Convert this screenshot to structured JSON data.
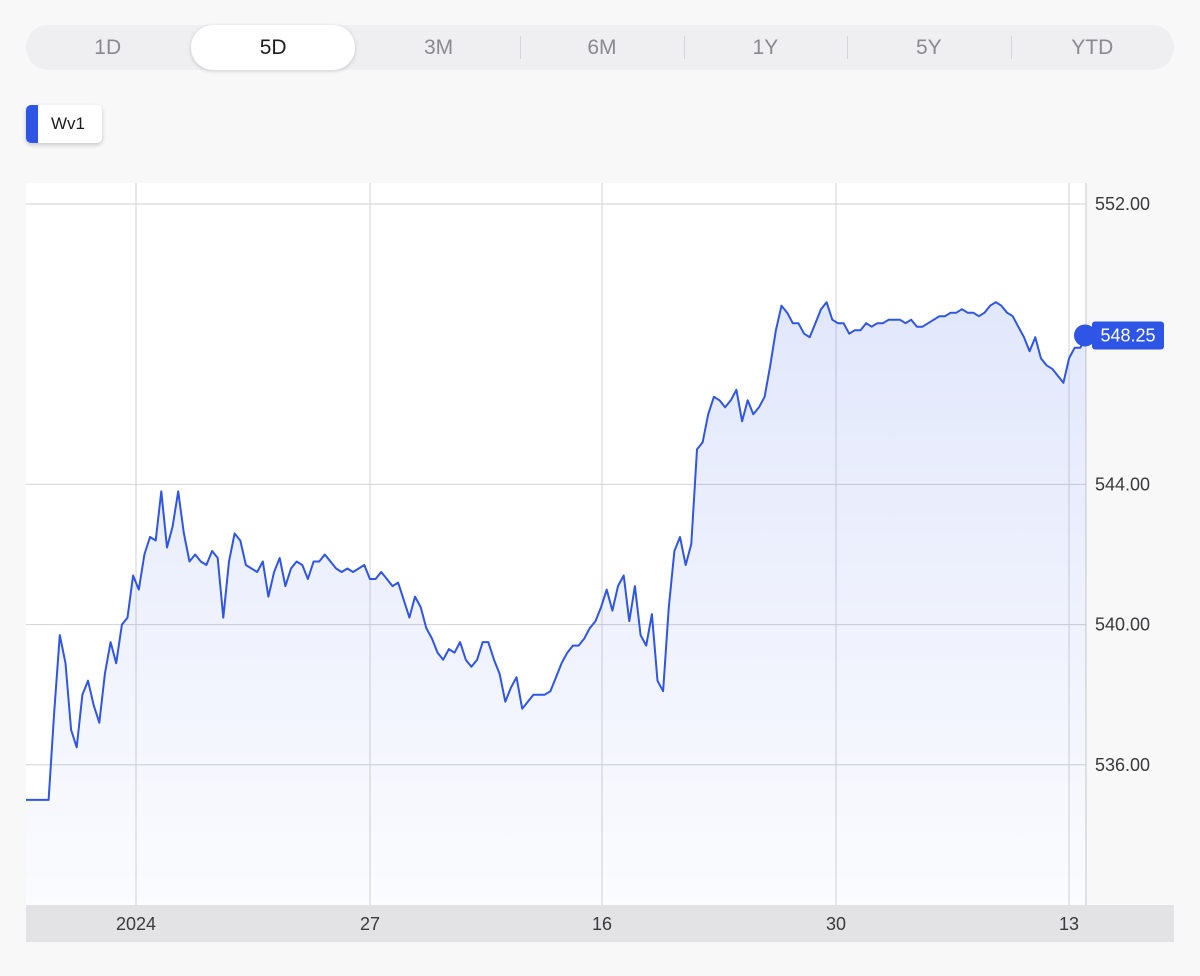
{
  "range_selector": {
    "tabs": [
      {
        "label": "1D"
      },
      {
        "label": "5D",
        "active": true
      },
      {
        "label": "3M"
      },
      {
        "label": "6M"
      },
      {
        "label": "1Y"
      },
      {
        "label": "5Y"
      },
      {
        "label": "YTD"
      }
    ]
  },
  "legend": {
    "label": "Wv1",
    "color": "#2e55e6"
  },
  "chart_data": {
    "type": "line",
    "title": "",
    "xlabel": "",
    "ylabel": "",
    "x_ticks": [
      "2024",
      "27",
      "16",
      "30",
      "13"
    ],
    "y_ticks": [
      "552.00",
      "544.00",
      "540.00",
      "536.00"
    ],
    "ylim": [
      532.0,
      552.6
    ],
    "grid": true,
    "legend_position": "top-left",
    "line_color": "#2e55e6",
    "current_value": "548.25",
    "series": [
      {
        "name": "Wv1",
        "values": [
          535.0,
          535.0,
          535.0,
          535.0,
          535.0,
          537.5,
          539.7,
          538.9,
          537.0,
          536.5,
          538.0,
          538.4,
          537.7,
          537.2,
          538.6,
          539.5,
          538.9,
          540.0,
          540.2,
          541.4,
          541.0,
          542.0,
          542.5,
          542.4,
          543.8,
          542.2,
          542.8,
          543.8,
          542.6,
          541.8,
          542.0,
          541.8,
          541.7,
          542.1,
          541.9,
          540.2,
          541.8,
          542.6,
          542.4,
          541.7,
          541.6,
          541.5,
          541.8,
          540.8,
          541.5,
          541.9,
          541.1,
          541.6,
          541.8,
          541.7,
          541.3,
          541.8,
          541.8,
          542.0,
          541.8,
          541.6,
          541.5,
          541.6,
          541.5,
          541.6,
          541.7,
          541.3,
          541.3,
          541.5,
          541.3,
          541.1,
          541.2,
          540.7,
          540.2,
          540.8,
          540.5,
          539.9,
          539.6,
          539.2,
          539.0,
          539.3,
          539.2,
          539.5,
          539.0,
          538.8,
          539.0,
          539.5,
          539.5,
          539.0,
          538.6,
          537.8,
          538.2,
          538.5,
          537.6,
          537.8,
          538.0,
          538.0,
          538.0,
          538.1,
          538.5,
          538.9,
          539.2,
          539.4,
          539.4,
          539.6,
          539.9,
          540.1,
          540.5,
          541.0,
          540.4,
          541.1,
          541.4,
          540.1,
          541.1,
          539.7,
          539.4,
          540.3,
          538.4,
          538.1,
          540.5,
          542.1,
          542.5,
          541.7,
          542.3,
          545.0,
          545.2,
          546.0,
          546.5,
          546.4,
          546.2,
          546.4,
          546.7,
          545.8,
          546.4,
          546.0,
          546.2,
          546.5,
          547.4,
          548.4,
          549.1,
          548.9,
          548.6,
          548.6,
          548.3,
          548.2,
          548.6,
          549.0,
          549.2,
          548.7,
          548.6,
          548.6,
          548.3,
          548.4,
          548.4,
          548.6,
          548.5,
          548.6,
          548.6,
          548.7,
          548.7,
          548.7,
          548.6,
          548.7,
          548.5,
          548.5,
          548.6,
          548.7,
          548.8,
          548.8,
          548.9,
          548.9,
          549.0,
          548.9,
          548.9,
          548.8,
          548.9,
          549.1,
          549.2,
          549.1,
          548.9,
          548.8,
          548.5,
          548.2,
          547.8,
          548.2,
          547.6,
          547.4,
          547.3,
          547.1,
          546.9,
          547.6,
          547.9,
          547.9,
          548.25
        ]
      }
    ]
  }
}
